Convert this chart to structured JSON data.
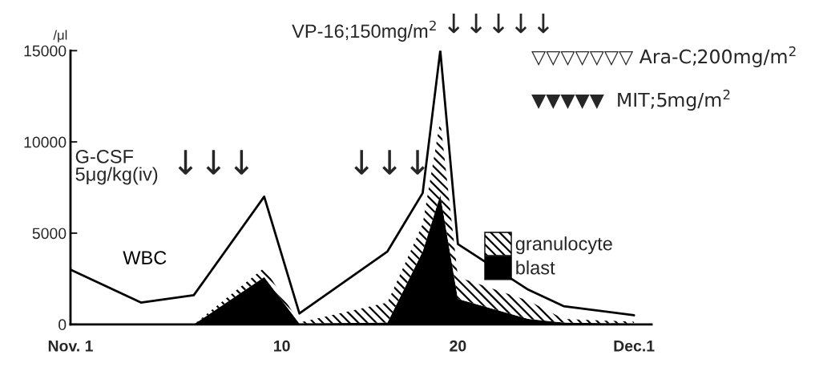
{
  "chart_data": {
    "type": "area",
    "x": [
      -2,
      2,
      5,
      9,
      11,
      16,
      18,
      19,
      20,
      24,
      26,
      30
    ],
    "series": [
      {
        "name": "blast",
        "color": "#000000",
        "values": [
          0,
          0,
          0,
          2600,
          50,
          100,
          4000,
          7100,
          1400,
          300,
          100,
          50
        ]
      },
      {
        "name": "granulocyte",
        "color": "#000000",
        "values": [
          0,
          0,
          0,
          500,
          50,
          1100,
          1500,
          4100,
          1200,
          1000,
          200,
          100
        ]
      },
      {
        "name": "WBC",
        "type": "line",
        "color": "#000000",
        "values": [
          3000,
          1200,
          1600,
          7000,
          600,
          4000,
          7200,
          15000,
          4400,
          1900,
          1000,
          500
        ]
      }
    ],
    "stacked": true,
    "ylabel": "/μl",
    "xlim": [
      -2,
      31
    ],
    "xticks": [
      {
        "value": -2,
        "label": "Nov. 1"
      },
      10,
      20,
      {
        "value": 30,
        "label": "Dec.1"
      }
    ],
    "ylim": [
      0,
      15000
    ],
    "yticks": [
      0,
      5000,
      10000,
      15000
    ],
    "grid": false,
    "legend": "right",
    "marker": "none",
    "line_style": "solid",
    "annotations": [
      "G-CSF\n5μg/kg(iv)",
      "VP-16;150mg/m$^{2}$",
      "▽▽▽▽▽▽▽ Ara-C;200mg/m$^{2}$",
      "▼▼▼▼▼  MIT;5mg/m$^{2}$",
      "↓↓↓",
      "↓↓↓",
      "↓↓↓↓↓"
    ]
  }
}
